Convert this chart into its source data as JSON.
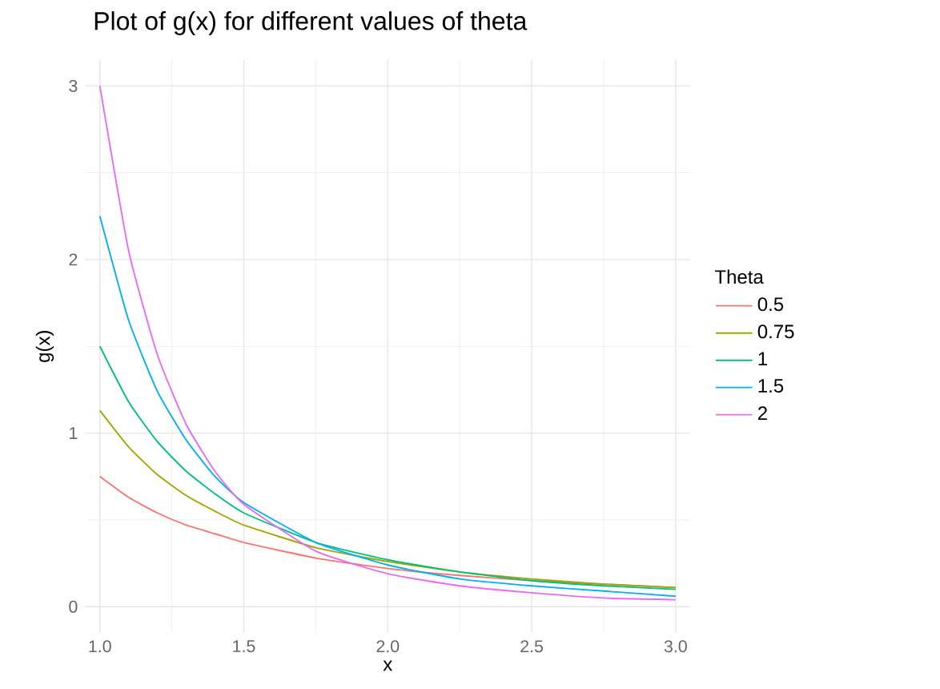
{
  "chart_data": {
    "type": "line",
    "title": "Plot of g(x) for different values of theta",
    "xlabel": "x",
    "ylabel": "g(x)",
    "legend_title": "Theta",
    "x": [
      1,
      1.1,
      1.2,
      1.3,
      1.4,
      1.5,
      1.75,
      2,
      2.25,
      2.5,
      2.75,
      3
    ],
    "series": [
      {
        "name": "0.5",
        "color": "#F8766D",
        "values": [
          0.75,
          0.63,
          0.54,
          0.47,
          0.42,
          0.37,
          0.28,
          0.22,
          0.18,
          0.15,
          0.13,
          0.11
        ]
      },
      {
        "name": "0.75",
        "color": "#A3A500",
        "values": [
          1.13,
          0.92,
          0.76,
          0.64,
          0.55,
          0.47,
          0.34,
          0.26,
          0.2,
          0.16,
          0.13,
          0.11
        ]
      },
      {
        "name": "1",
        "color": "#00BF7D",
        "values": [
          1.5,
          1.18,
          0.95,
          0.78,
          0.65,
          0.54,
          0.37,
          0.27,
          0.2,
          0.15,
          0.12,
          0.1
        ]
      },
      {
        "name": "1.5",
        "color": "#00B0F6",
        "values": [
          2.25,
          1.65,
          1.24,
          0.96,
          0.75,
          0.6,
          0.37,
          0.24,
          0.16,
          0.12,
          0.09,
          0.06
        ]
      },
      {
        "name": "2",
        "color": "#E76BF3",
        "values": [
          3,
          2.05,
          1.45,
          1.05,
          0.78,
          0.59,
          0.32,
          0.19,
          0.12,
          0.08,
          0.05,
          0.04
        ]
      }
    ],
    "xlim": [
      0.95,
      3.05
    ],
    "ylim": [
      -0.15,
      3.15
    ],
    "xticks": [
      {
        "value": 1,
        "label": "1.0"
      },
      1.5,
      {
        "value": 2,
        "label": "2.0"
      },
      2.5,
      {
        "value": 3,
        "label": "3.0"
      }
    ],
    "yticks": [
      0,
      1,
      2,
      3
    ],
    "grid": true,
    "legend": "right",
    "marker": "none",
    "line_style": "solid"
  }
}
